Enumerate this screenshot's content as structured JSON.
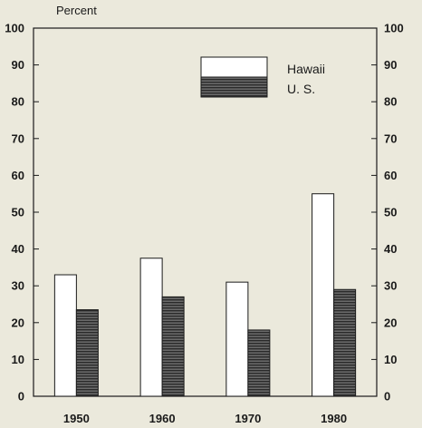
{
  "chart_data": {
    "type": "bar",
    "ylabel": "Percent",
    "categories": [
      "1950",
      "1960",
      "1970",
      "1980"
    ],
    "ylim": [
      0,
      100
    ],
    "yticks": [
      0,
      10,
      20,
      30,
      40,
      50,
      60,
      70,
      80,
      90,
      100
    ],
    "series": [
      {
        "name": "Hawaii",
        "values": [
          33,
          37.5,
          31,
          55
        ]
      },
      {
        "name": "U. S.",
        "values": [
          23.5,
          27,
          18,
          29
        ]
      }
    ],
    "legend_position": "top-right",
    "grid": false,
    "colors": {
      "hawaii_fill": "#ffffff",
      "us_fill": "#555555",
      "axis": "#1a1a1a"
    }
  }
}
